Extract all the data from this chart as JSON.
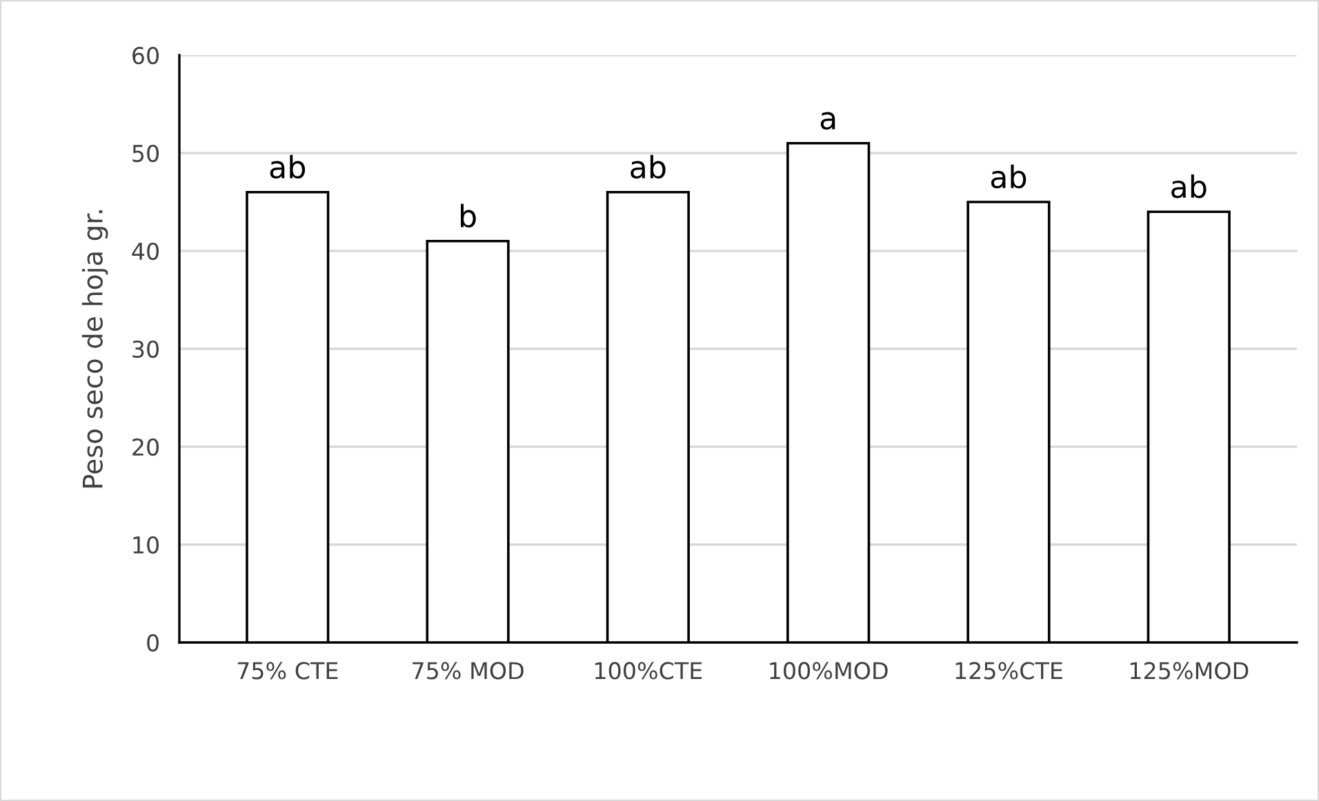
{
  "chart_data": {
    "type": "bar",
    "ylabel": "Peso seco de hoja gr.",
    "categories": [
      "75% CTE",
      "75% MOD",
      "100%CTE",
      "100%MOD",
      "125%CTE",
      "125%MOD"
    ],
    "values": [
      46,
      41,
      46,
      51,
      45,
      44
    ],
    "color": "#ffffff",
    "ylim": [
      0,
      60
    ],
    "yticks": [
      0,
      10,
      20,
      30,
      40,
      50,
      60
    ],
    "grid": "y",
    "annotations": [
      {
        "text": "ab",
        "x": "75% CTE",
        "y": 46
      },
      {
        "text": "b",
        "x": "75% MOD",
        "y": 41
      },
      {
        "text": "ab",
        "x": "100%CTE",
        "y": 46
      },
      {
        "text": "a",
        "x": "100%MOD",
        "y": 51
      },
      {
        "text": "ab",
        "x": "125%CTE",
        "y": 45
      },
      {
        "text": "ab",
        "x": "125%MOD",
        "y": 44
      }
    ]
  }
}
